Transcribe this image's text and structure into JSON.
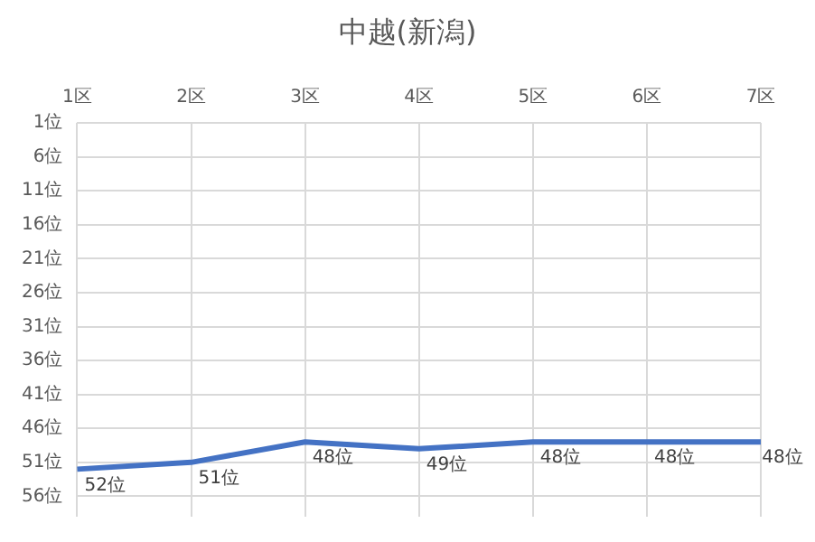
{
  "chart_data": {
    "type": "line",
    "title": "中越(新潟)",
    "categories": [
      "1区",
      "2区",
      "3区",
      "4区",
      "5区",
      "6区",
      "7区"
    ],
    "series": [
      {
        "color": "#4472c4",
        "values": [
          52,
          51,
          48,
          49,
          48,
          48,
          48
        ],
        "value_labels": [
          "52位",
          "51位",
          "48位",
          "49位",
          "48位",
          "48位",
          "48位"
        ]
      }
    ],
    "ylim": [
      59,
      1
    ],
    "yticks": [
      {
        "value": 1,
        "label": "1位"
      },
      {
        "value": 6,
        "label": "6位"
      },
      {
        "value": 11,
        "label": "11位"
      },
      {
        "value": 16,
        "label": "16位"
      },
      {
        "value": 21,
        "label": "21位"
      },
      {
        "value": 26,
        "label": "26位"
      },
      {
        "value": 31,
        "label": "31位"
      },
      {
        "value": 36,
        "label": "36位"
      },
      {
        "value": 41,
        "label": "41位"
      },
      {
        "value": 46,
        "label": "46位"
      },
      {
        "value": 51,
        "label": "51位"
      },
      {
        "value": 56,
        "label": "56位"
      }
    ],
    "grid": true,
    "legend": false,
    "marker": "none",
    "line_style": "solid"
  }
}
